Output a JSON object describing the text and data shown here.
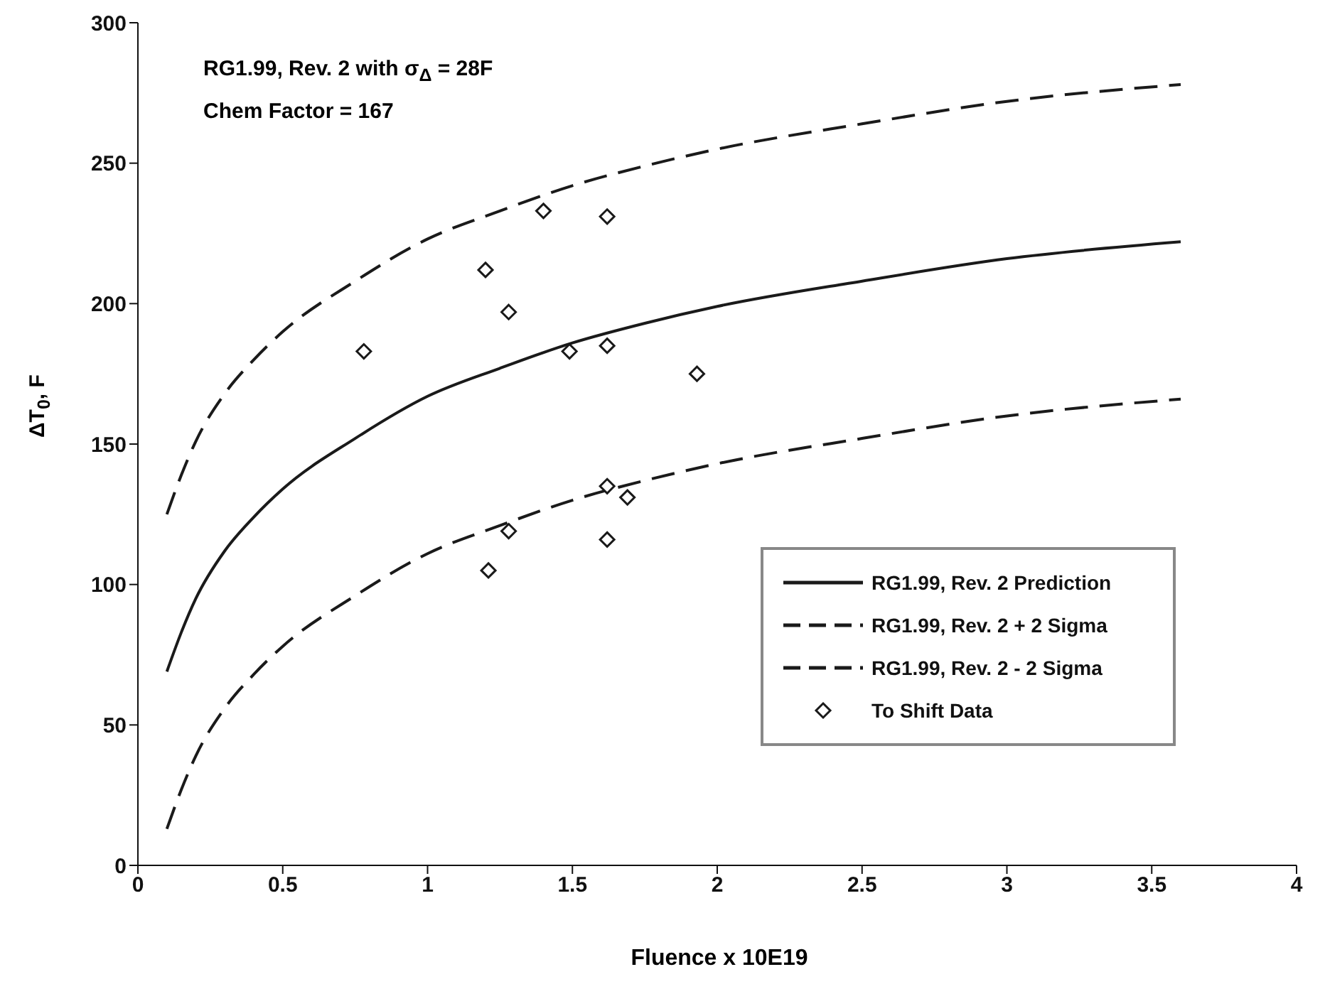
{
  "chart_data": {
    "type": "line",
    "xlabel": "Fluence x 10E19",
    "ylabel": "ΔT$_{0}$, F",
    "annotations": [
      "RG1.99, Rev. 2 with σ$_{Δ}$ = 28F",
      "Chem Factor = 167"
    ],
    "xlim": [
      0,
      4
    ],
    "xticks": [
      0,
      0.5,
      1,
      1.5,
      2,
      2.5,
      3,
      3.5,
      4
    ],
    "ylim": [
      0,
      300
    ],
    "yticks": [
      0,
      50,
      100,
      150,
      200,
      250,
      300
    ],
    "grid": false,
    "legend": "bottom right",
    "series": [
      {
        "name": "RG1.99, Rev. 2 Prediction",
        "color": "#1a1a1a",
        "line_style": "solid",
        "x": [
          0.1,
          0.15,
          0.2,
          0.3,
          0.4,
          0.5,
          0.75,
          1,
          1.25,
          1.5,
          1.75,
          2,
          2.5,
          3,
          3.6
        ],
        "values": [
          69,
          83,
          95,
          112,
          124,
          134,
          152,
          167,
          177,
          186,
          193,
          199,
          208,
          216,
          222
        ]
      },
      {
        "name": "RG1.99, Rev. 2 + 2 Sigma",
        "color": "#1a1a1a",
        "line_style": "dashed",
        "x": [
          0.1,
          0.15,
          0.2,
          0.3,
          0.4,
          0.5,
          0.75,
          1,
          1.25,
          1.5,
          1.75,
          2,
          2.5,
          3,
          3.6
        ],
        "values": [
          125,
          139,
          151,
          168,
          180,
          190,
          208,
          223,
          233,
          242,
          249,
          255,
          264,
          272,
          278
        ]
      },
      {
        "name": "RG1.99, Rev. 2 - 2 Sigma",
        "color": "#1a1a1a",
        "line_style": "dashed",
        "x": [
          0.1,
          0.15,
          0.2,
          0.3,
          0.4,
          0.5,
          0.75,
          1,
          1.25,
          1.5,
          1.75,
          2,
          2.5,
          3,
          3.6
        ],
        "values": [
          13,
          27,
          39,
          56,
          68,
          78,
          96,
          111,
          121,
          130,
          137,
          143,
          152,
          160,
          166
        ]
      },
      {
        "name": "To Shift Data",
        "type": "scatter",
        "color": "#1a1a1a",
        "marker": "diamond",
        "x": [
          0.78,
          1.2,
          1.28,
          1.4,
          1.49,
          1.62,
          1.62,
          1.93,
          1.62,
          1.69,
          1.28,
          1.62,
          1.21
        ],
        "values": [
          183,
          212,
          197,
          233,
          183,
          231,
          185,
          175,
          135,
          131,
          119,
          116,
          105
        ]
      }
    ]
  }
}
